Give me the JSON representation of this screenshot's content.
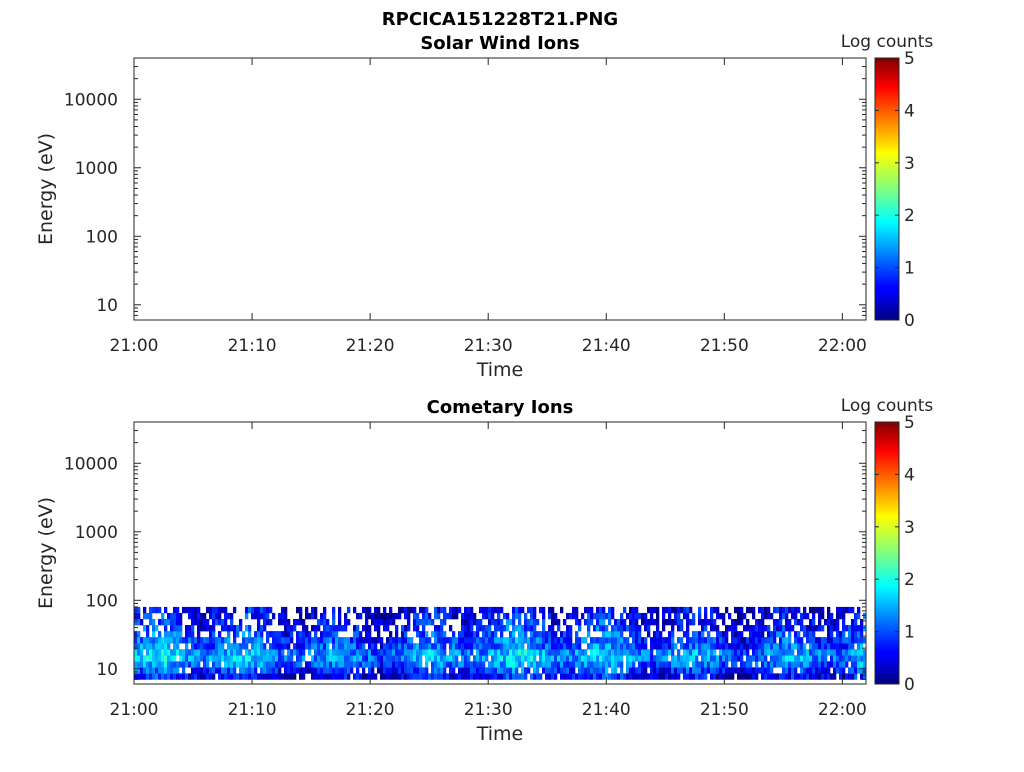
{
  "figure_title": "RPCICA151228T21.PNG",
  "colorbar": {
    "label": "Log counts",
    "ticks": [
      "0",
      "1",
      "2",
      "3",
      "4",
      "5"
    ],
    "range": [
      0,
      5
    ],
    "colormap": "jet"
  },
  "chart_data": [
    {
      "type": "heatmap",
      "title": "Solar Wind Ions",
      "xlabel": "Time",
      "ylabel": "Energy (eV)",
      "x_ticks": [
        "21:00",
        "21:10",
        "21:20",
        "21:30",
        "21:40",
        "21:50",
        "22:00"
      ],
      "x_range_minutes": [
        0,
        62
      ],
      "y_scale": "log",
      "y_range": [
        6,
        40000
      ],
      "y_ticks": [
        10,
        100,
        1000,
        10000
      ],
      "y_tick_labels": [
        "10",
        "100",
        "1000",
        "10000"
      ],
      "data": "empty"
    },
    {
      "type": "heatmap",
      "title": "Cometary Ions",
      "xlabel": "Time",
      "ylabel": "Energy (eV)",
      "x_ticks": [
        "21:00",
        "21:10",
        "21:20",
        "21:30",
        "21:40",
        "21:50",
        "22:00"
      ],
      "x_range_minutes": [
        0,
        62
      ],
      "y_scale": "log",
      "y_range": [
        6,
        40000
      ],
      "y_ticks": [
        10,
        100,
        1000,
        10000
      ],
      "y_tick_labels": [
        "10",
        "100",
        "1000",
        "10000"
      ],
      "energy_band_eV": [
        7,
        80
      ],
      "energy_profile": [
        {
          "energy_eV": 8,
          "log_counts": 0.6
        },
        {
          "energy_eV": 12,
          "log_counts": 1.2
        },
        {
          "energy_eV": 16,
          "log_counts": 1.5
        },
        {
          "energy_eV": 20,
          "log_counts": 1.1
        },
        {
          "energy_eV": 30,
          "log_counts": 0.9
        },
        {
          "energy_eV": 45,
          "log_counts": 0.7
        },
        {
          "energy_eV": 70,
          "log_counts": 0.5
        }
      ]
    }
  ]
}
